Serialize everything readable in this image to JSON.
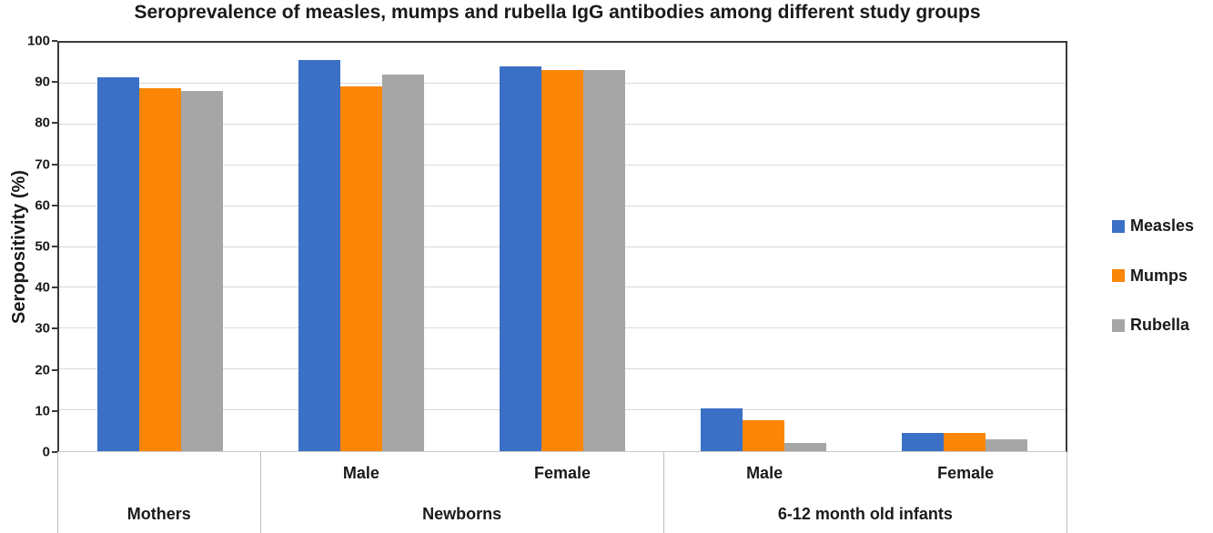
{
  "title": "Seroprevalence of measles, mumps and rubella IgG antibodies among different study groups",
  "chart_data": {
    "type": "bar",
    "title": "Seroprevalence of measles, mumps and rubella IgG antibodies among different study groups",
    "xlabel": "",
    "ylabel": "Seropositivity (%)",
    "ylim": [
      0,
      100
    ],
    "yticks": [
      0,
      10,
      20,
      30,
      40,
      50,
      60,
      70,
      80,
      90,
      100
    ],
    "grid": true,
    "legend_position": "right-middle",
    "categories": [
      "Mothers",
      "Newborns Male",
      "Newborns Female",
      "6-12 month old infants Male",
      "6-12 month old infants Female"
    ],
    "category_axis": {
      "sublabels": [
        "",
        "Male",
        "Female",
        "Male",
        "Female"
      ],
      "groups": [
        {
          "label": "Mothers",
          "span": 1
        },
        {
          "label": "Newborns",
          "span": 2
        },
        {
          "label": "6-12 month old infants",
          "span": 2
        }
      ]
    },
    "series": [
      {
        "name": "Measles",
        "color": "#3B70C6",
        "values": [
          91.5,
          95.8,
          94.2,
          10.4,
          4.4
        ]
      },
      {
        "name": "Mumps",
        "color": "#FB8608",
        "values": [
          88.8,
          89.3,
          93.4,
          7.5,
          4.4
        ]
      },
      {
        "name": "Rubella",
        "color": "#A6A6A6",
        "values": [
          88.1,
          92.2,
          93.4,
          2.0,
          2.8
        ]
      }
    ],
    "style": {
      "plot_border": "#3A3A3A",
      "gridline": "#D9D9D9",
      "baseline": "#C9C9C9",
      "table_border": "#BFBFBF",
      "text": "#1A1A1A"
    }
  }
}
